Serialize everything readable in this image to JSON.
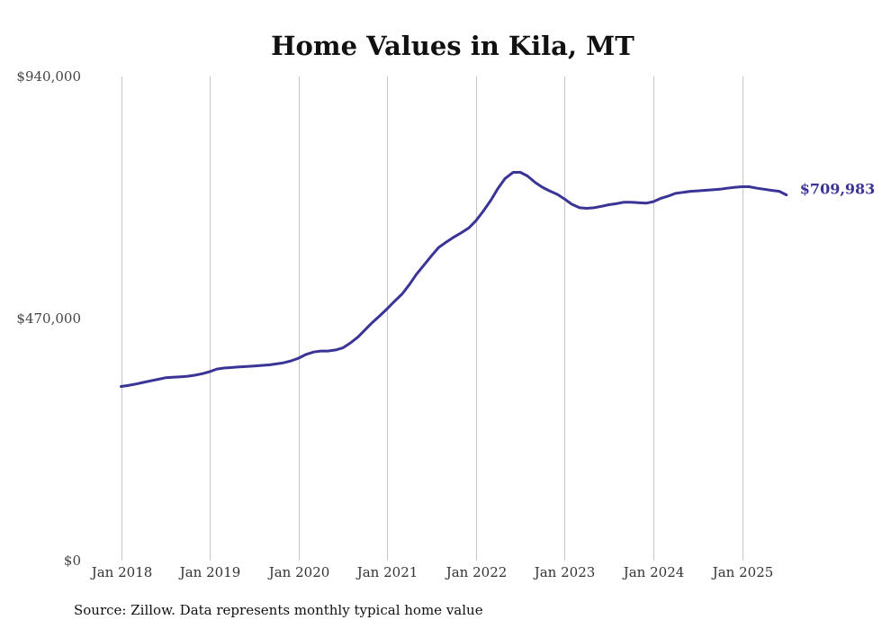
{
  "chart_data": {
    "type": "line",
    "title": "Home Values in Kila, MT",
    "source": "Source: Zillow. Data represents monthly typical home value",
    "xlabel": "",
    "ylabel": "",
    "ylim": [
      0,
      940000
    ],
    "xlim": [
      2018,
      2025.55
    ],
    "y_ticks": [
      {
        "value": 0,
        "label": "$0"
      },
      {
        "value": 470000,
        "label": "$470,000"
      },
      {
        "value": 940000,
        "label": "$940,000"
      }
    ],
    "x_ticks": [
      {
        "value": 2018,
        "label": "Jan 2018"
      },
      {
        "value": 2019,
        "label": "Jan 2019"
      },
      {
        "value": 2020,
        "label": "Jan 2020"
      },
      {
        "value": 2021,
        "label": "Jan 2021"
      },
      {
        "value": 2022,
        "label": "Jan 2022"
      },
      {
        "value": 2023,
        "label": "Jan 2023"
      },
      {
        "value": 2024,
        "label": "Jan 2024"
      },
      {
        "value": 2025,
        "label": "Jan 2025"
      }
    ],
    "grid": "vertical",
    "line_color": "#3b3497",
    "end_label": "$709,983",
    "series": [
      {
        "name": "Typical home value",
        "x": [
          2018.0,
          2018.08,
          2018.17,
          2018.25,
          2018.33,
          2018.42,
          2018.5,
          2018.58,
          2018.67,
          2018.75,
          2018.83,
          2018.92,
          2019.0,
          2019.08,
          2019.17,
          2019.25,
          2019.33,
          2019.42,
          2019.5,
          2019.58,
          2019.67,
          2019.75,
          2019.83,
          2019.92,
          2020.0,
          2020.08,
          2020.17,
          2020.25,
          2020.33,
          2020.42,
          2020.5,
          2020.58,
          2020.67,
          2020.75,
          2020.83,
          2020.92,
          2021.0,
          2021.08,
          2021.17,
          2021.25,
          2021.33,
          2021.42,
          2021.5,
          2021.58,
          2021.67,
          2021.75,
          2021.83,
          2021.92,
          2022.0,
          2022.08,
          2022.17,
          2022.25,
          2022.33,
          2022.42,
          2022.5,
          2022.58,
          2022.67,
          2022.75,
          2022.83,
          2022.92,
          2023.0,
          2023.08,
          2023.17,
          2023.25,
          2023.33,
          2023.42,
          2023.5,
          2023.58,
          2023.67,
          2023.75,
          2023.83,
          2023.92,
          2024.0,
          2024.08,
          2024.17,
          2024.25,
          2024.33,
          2024.42,
          2024.5,
          2024.58,
          2024.67,
          2024.75,
          2024.83,
          2024.92,
          2025.0,
          2025.08,
          2025.17,
          2025.25,
          2025.33,
          2025.42,
          2025.5
        ],
        "values": [
          338000,
          340000,
          343000,
          346000,
          349000,
          352000,
          355000,
          356000,
          357000,
          358000,
          360000,
          363000,
          367000,
          372000,
          374000,
          375000,
          376000,
          377000,
          378000,
          379000,
          380000,
          382000,
          384000,
          388000,
          393000,
          400000,
          405000,
          407000,
          407000,
          409000,
          413000,
          422000,
          434000,
          448000,
          462000,
          476000,
          489000,
          503000,
          518000,
          536000,
          556000,
          575000,
          592000,
          608000,
          619000,
          628000,
          636000,
          646000,
          660000,
          678000,
          700000,
          723000,
          742000,
          754000,
          754000,
          747000,
          734000,
          725000,
          718000,
          711000,
          702000,
          692000,
          685000,
          684000,
          685000,
          688000,
          691000,
          693000,
          696000,
          696000,
          695000,
          694000,
          697000,
          703000,
          708000,
          713000,
          715000,
          717000,
          718000,
          719000,
          720000,
          721000,
          723000,
          725000,
          726000,
          726000,
          723000,
          721000,
          719000,
          717000,
          709983
        ]
      }
    ]
  }
}
